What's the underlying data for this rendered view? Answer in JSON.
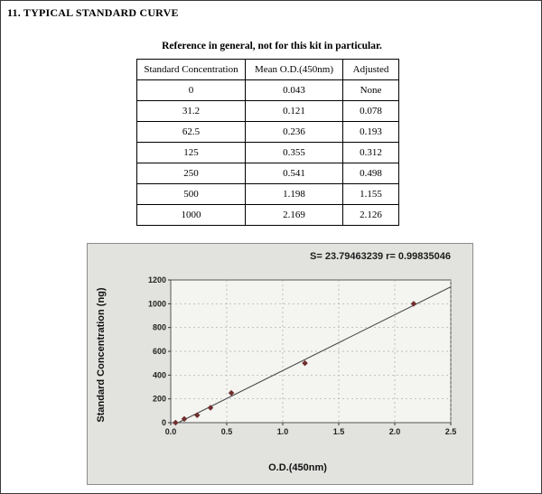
{
  "page": {
    "section_title": "11. TYPICAL STANDARD CURVE",
    "subtitle": "Reference in general, not for this kit in particular."
  },
  "table": {
    "headers": [
      "Standard Concentration",
      "Mean O.D.(450nm)",
      "Adjusted"
    ],
    "rows": [
      [
        "0",
        "0.043",
        "None"
      ],
      [
        "31.2",
        "0.121",
        "0.078"
      ],
      [
        "62.5",
        "0.236",
        "0.193"
      ],
      [
        "125",
        "0.355",
        "0.312"
      ],
      [
        "250",
        "0.541",
        "0.498"
      ],
      [
        "500",
        "1.198",
        "1.155"
      ],
      [
        "1000",
        "2.169",
        "2.126"
      ]
    ]
  },
  "chart_data": {
    "type": "scatter",
    "annotation": "S= 23.79463239  r= 0.99835046",
    "xlabel": "O.D.(450nm)",
    "ylabel": "Standard Concentration (ng)",
    "xlim": [
      0,
      2.5
    ],
    "ylim": [
      0,
      1200
    ],
    "x_ticks": [
      0,
      0.5,
      1.0,
      1.5,
      2.0,
      2.5
    ],
    "x_tick_labels": [
      "0.0",
      "0.5",
      "1.0",
      "1.5",
      "2.0",
      "2.5"
    ],
    "y_ticks": [
      0,
      200,
      400,
      600,
      800,
      1000,
      1200
    ],
    "y_tick_labels": [
      "0",
      "200",
      "400",
      "600",
      "800",
      "1000",
      "1200"
    ],
    "grid": true,
    "legend": false,
    "series": [
      {
        "name": "standards",
        "x": [
          0.043,
          0.121,
          0.236,
          0.355,
          0.541,
          1.198,
          2.169
        ],
        "y": [
          0,
          31.2,
          62.5,
          125,
          250,
          500,
          1000
        ]
      }
    ],
    "fit_line": {
      "x": [
        0.067,
        2.5
      ],
      "y": [
        0,
        1142
      ]
    },
    "colors": {
      "point": "#6e2f2f",
      "line": "#4a4a4a",
      "grid": "#a8a8a8",
      "plot_bg": "#f4f4f1",
      "frame": "#555555"
    }
  }
}
